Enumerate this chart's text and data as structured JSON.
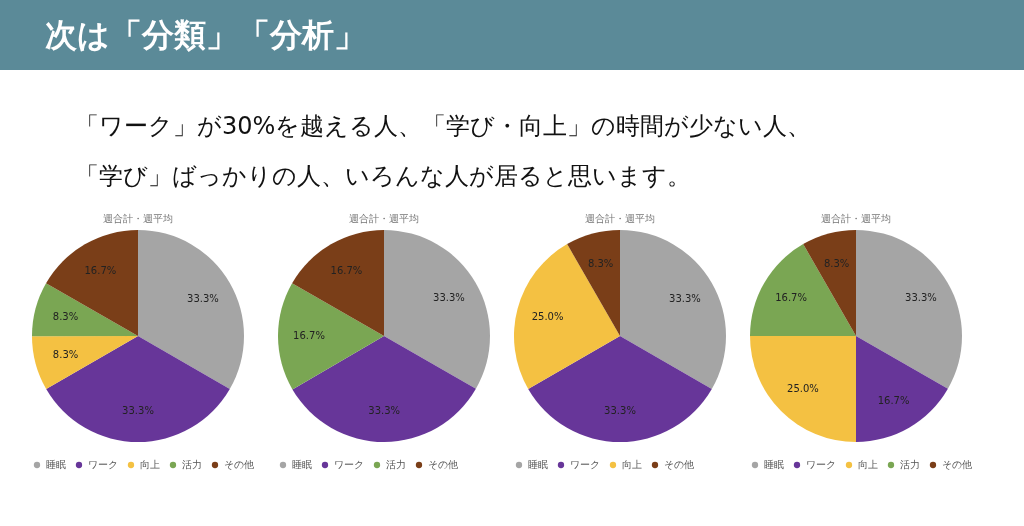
{
  "chart_data": [
    {
      "type": "other",
      "title": "次は「分類」「分析」",
      "annotations": [
        "「ワーク」が30%を越える人、「学び・向上」の時間が少ない人、",
        "「学び」ばっかりの人、いろんな人が居ると思います。"
      ]
    },
    {
      "type": "pie",
      "title": "週合計・週平均",
      "categories": [
        "睡眠",
        "ワーク",
        "向上",
        "活力",
        "その他"
      ],
      "values": [
        33.3,
        33.3,
        8.3,
        8.3,
        16.7
      ],
      "value_labels": [
        "33.3%",
        "33.3%",
        "8.3%",
        "8.3%",
        "16.7%"
      ],
      "colors": [
        "#a5a5a5",
        "#673699",
        "#f4c142",
        "#7aa653",
        "#7a3e18"
      ],
      "legend": "bottom"
    },
    {
      "type": "pie",
      "title": "週合計・週平均",
      "categories": [
        "睡眠",
        "ワーク",
        "活力",
        "その他"
      ],
      "values": [
        33.3,
        33.3,
        16.7,
        16.7
      ],
      "value_labels": [
        "33.3%",
        "33.3%",
        "16.7%",
        "16.7%"
      ],
      "colors": [
        "#a5a5a5",
        "#673699",
        "#7aa653",
        "#7a3e18"
      ],
      "legend": "bottom"
    },
    {
      "type": "pie",
      "title": "週合計・週平均",
      "categories": [
        "睡眠",
        "ワーク",
        "向上",
        "その他"
      ],
      "values": [
        33.3,
        33.3,
        25.0,
        8.3
      ],
      "value_labels": [
        "33.3%",
        "33.3%",
        "25.0%",
        "8.3%"
      ],
      "colors": [
        "#a5a5a5",
        "#673699",
        "#f4c142",
        "#7a3e18"
      ],
      "legend": "bottom"
    },
    {
      "type": "pie",
      "title": "週合計・週平均",
      "categories": [
        "睡眠",
        "ワーク",
        "向上",
        "活力",
        "その他"
      ],
      "values": [
        33.3,
        16.7,
        25.0,
        16.7,
        8.3
      ],
      "value_labels": [
        "33.3%",
        "16.7%",
        "25.0%",
        "16.7%",
        "8.3%"
      ],
      "colors": [
        "#a5a5a5",
        "#673699",
        "#f4c142",
        "#7aa653",
        "#7a3e18"
      ],
      "legend": "bottom"
    }
  ]
}
